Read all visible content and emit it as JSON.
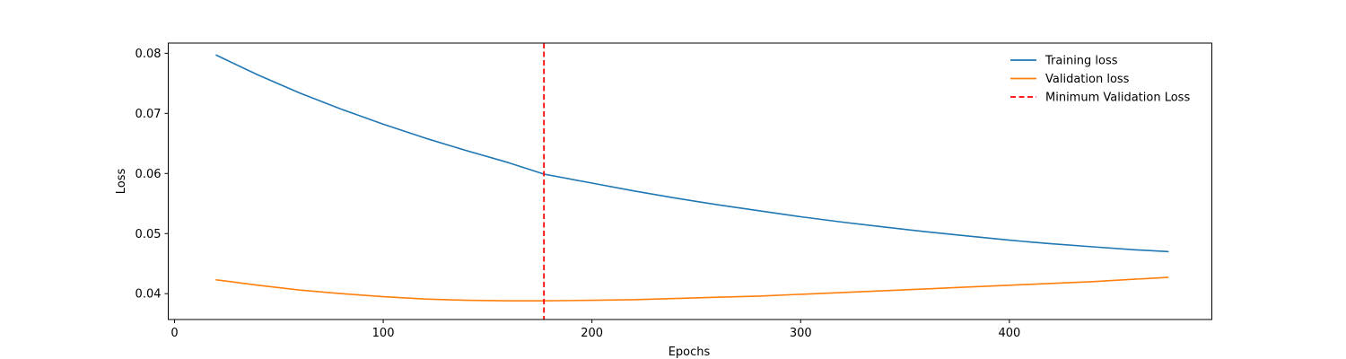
{
  "chart_data": {
    "type": "line",
    "title": "",
    "xlabel": "Epochs",
    "ylabel": "Loss",
    "xlim": [
      -3,
      497
    ],
    "ylim": [
      0.0357,
      0.0817
    ],
    "xticks": [
      0,
      100,
      200,
      300,
      400
    ],
    "yticks": [
      0.04,
      0.05,
      0.06,
      0.07,
      0.08
    ],
    "xtick_labels": [
      "0",
      "100",
      "200",
      "300",
      "400"
    ],
    "ytick_labels": [
      "0.04",
      "0.05",
      "0.06",
      "0.07",
      "0.08"
    ],
    "grid": false,
    "legend_position": "upper right",
    "series": [
      {
        "name": "Training loss",
        "color": "#1f77b4",
        "style": "solid",
        "x": [
          20,
          40,
          60,
          80,
          100,
          120,
          140,
          160,
          177,
          200,
          220,
          240,
          260,
          280,
          300,
          320,
          340,
          360,
          380,
          400,
          420,
          440,
          460,
          476
        ],
        "y": [
          0.0797,
          0.0764,
          0.0734,
          0.0707,
          0.0682,
          0.0659,
          0.0638,
          0.0618,
          0.0599,
          0.0584,
          0.0571,
          0.0559,
          0.0548,
          0.0538,
          0.0528,
          0.0519,
          0.0511,
          0.0503,
          0.0496,
          0.0489,
          0.0483,
          0.0478,
          0.0473,
          0.047
        ]
      },
      {
        "name": "Validation loss",
        "color": "#ff7f0e",
        "style": "solid",
        "x": [
          20,
          40,
          60,
          80,
          100,
          120,
          140,
          160,
          177,
          200,
          220,
          240,
          260,
          280,
          300,
          320,
          340,
          360,
          380,
          400,
          420,
          440,
          460,
          476
        ],
        "y": [
          0.0423,
          0.0414,
          0.0406,
          0.04,
          0.0395,
          0.0391,
          0.0389,
          0.0388,
          0.0388,
          0.0389,
          0.039,
          0.0392,
          0.0394,
          0.0396,
          0.0399,
          0.0402,
          0.0405,
          0.0408,
          0.0411,
          0.0414,
          0.0417,
          0.042,
          0.0424,
          0.0427
        ]
      }
    ],
    "vlines": [
      {
        "name": "Minimum Validation Loss",
        "x": 177,
        "color": "#ff0000",
        "style": "dashed"
      }
    ]
  }
}
